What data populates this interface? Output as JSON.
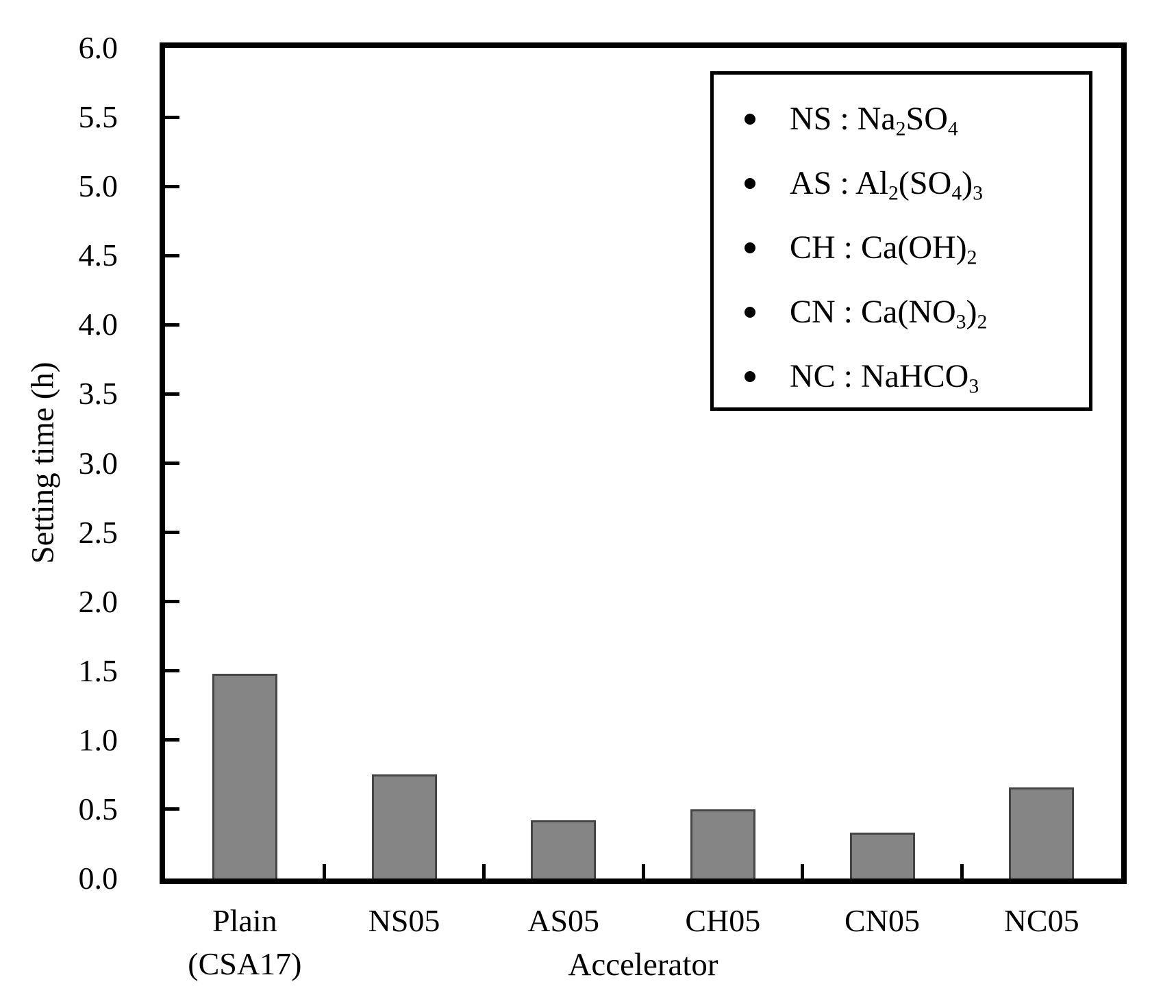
{
  "chart_data": {
    "type": "bar",
    "title": "",
    "xlabel": "Accelerator",
    "ylabel": "Setting time (h)",
    "categories": [
      "Plain\n(CSA17)",
      "NS05",
      "AS05",
      "CH05",
      "CN05",
      "NC05"
    ],
    "values": [
      1.48,
      0.75,
      0.42,
      0.5,
      0.33,
      0.66
    ],
    "ylim": [
      0,
      6
    ],
    "ytick_step": 0.5,
    "yticks": [
      "6.0",
      "5.5",
      "5.0",
      "4.5",
      "4.0",
      "3.5",
      "3.0",
      "2.5",
      "2.0",
      "1.5",
      "1.0",
      "0.5",
      "0.0"
    ],
    "grid": false,
    "bar_color": "#858585",
    "bar_border_color": "#454545",
    "legend_position": "top-right"
  },
  "legend": {
    "separator": " : ",
    "items": [
      {
        "code": "NS",
        "formula": [
          [
            "t",
            "Na"
          ],
          [
            "s",
            "2"
          ],
          [
            "t",
            "SO"
          ],
          [
            "s",
            "4"
          ]
        ]
      },
      {
        "code": "AS",
        "formula": [
          [
            "t",
            "Al"
          ],
          [
            "s",
            "2"
          ],
          [
            "t",
            "(SO"
          ],
          [
            "s",
            "4"
          ],
          [
            "t",
            ")"
          ],
          [
            "s",
            "3"
          ]
        ]
      },
      {
        "code": "CH",
        "formula": [
          [
            "t",
            "Ca(OH)"
          ],
          [
            "s",
            "2"
          ]
        ]
      },
      {
        "code": "CN",
        "formula": [
          [
            "t",
            "Ca(NO"
          ],
          [
            "s",
            "3"
          ],
          [
            "t",
            ")"
          ],
          [
            "s",
            "2"
          ]
        ]
      },
      {
        "code": "NC",
        "formula": [
          [
            "t",
            "NaHCO"
          ],
          [
            "s",
            "3"
          ]
        ]
      }
    ]
  }
}
